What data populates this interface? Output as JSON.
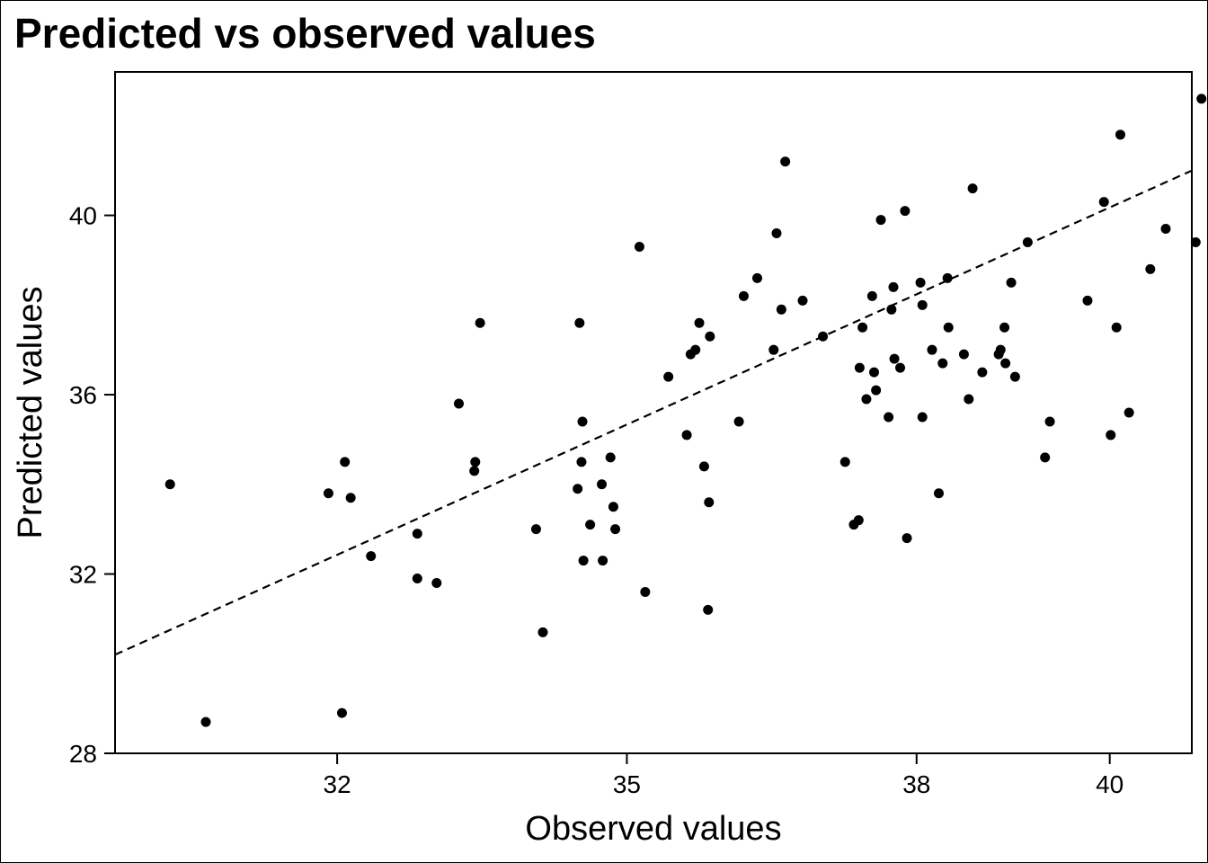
{
  "chart_data": {
    "type": "scatter",
    "title": "Predicted vs observed values",
    "xlabel": "Observed values",
    "ylabel": "Predicted values",
    "xlim": [
      29.7,
      40.85
    ],
    "ylim": [
      28,
      43.2
    ],
    "xticks": [
      32,
      35,
      38,
      40
    ],
    "yticks": [
      28,
      32,
      36,
      40
    ],
    "grid": false,
    "legend": "none",
    "trendline": {
      "style": "dashed",
      "y_at_xmin": 30.2,
      "y_at_xmax": 41.0
    },
    "colors": {
      "points": "#000000",
      "trendline": "#000000",
      "axes": "#000000"
    },
    "series": [
      {
        "x": [
          30.27,
          30.64,
          31.91,
          32.05,
          32.08,
          32.14,
          32.35,
          32.83,
          32.83,
          33.03,
          33.26,
          33.42,
          33.43,
          33.48,
          34.06,
          34.13,
          34.49,
          34.51,
          34.53,
          34.54,
          34.55,
          34.62,
          34.74,
          34.75,
          34.83,
          34.86,
          34.88,
          35.13,
          35.19,
          35.43,
          35.62,
          35.66,
          35.71,
          35.75,
          35.8,
          35.84,
          35.85,
          35.86,
          36.16,
          36.21,
          36.35,
          36.52,
          36.55,
          36.6,
          36.64,
          36.82,
          37.03,
          37.26,
          37.35,
          37.4,
          37.41,
          37.44,
          37.48,
          37.54,
          37.56,
          37.58,
          37.63,
          37.71,
          37.74,
          37.76,
          37.77,
          37.83,
          37.88,
          37.9,
          38.04,
          38.06,
          38.06,
          38.16,
          38.23,
          38.27,
          38.32,
          38.33,
          38.49,
          38.54,
          38.58,
          38.68,
          38.85,
          38.87,
          38.91,
          38.92,
          38.98,
          39.02,
          39.15,
          39.33,
          39.38,
          39.77,
          39.94,
          40.01,
          40.07,
          40.11,
          40.2,
          40.42,
          40.58,
          40.89,
          40.95
        ],
        "y": [
          34.0,
          28.7,
          33.8,
          28.9,
          34.5,
          33.7,
          32.4,
          31.9,
          32.9,
          31.8,
          35.8,
          34.3,
          34.5,
          37.6,
          33.0,
          30.7,
          33.9,
          37.6,
          34.5,
          35.4,
          32.3,
          33.1,
          34.0,
          32.3,
          34.6,
          33.5,
          33.0,
          39.3,
          31.6,
          36.4,
          35.1,
          36.9,
          37.0,
          37.6,
          34.4,
          31.2,
          33.6,
          37.3,
          35.4,
          38.2,
          38.6,
          37.0,
          39.6,
          37.9,
          41.2,
          38.1,
          37.3,
          34.5,
          33.1,
          33.2,
          36.6,
          37.5,
          35.9,
          38.2,
          36.5,
          36.1,
          39.9,
          35.5,
          37.9,
          38.4,
          36.8,
          36.6,
          40.1,
          32.8,
          38.5,
          35.5,
          38.0,
          37.0,
          33.8,
          36.7,
          38.6,
          37.5,
          36.9,
          35.9,
          40.6,
          36.5,
          36.9,
          37.0,
          37.5,
          36.7,
          38.5,
          36.4,
          39.4,
          34.6,
          35.4,
          38.1,
          40.3,
          35.1,
          37.5,
          41.8,
          35.6,
          38.8,
          39.7,
          39.4,
          42.6
        ]
      }
    ]
  }
}
